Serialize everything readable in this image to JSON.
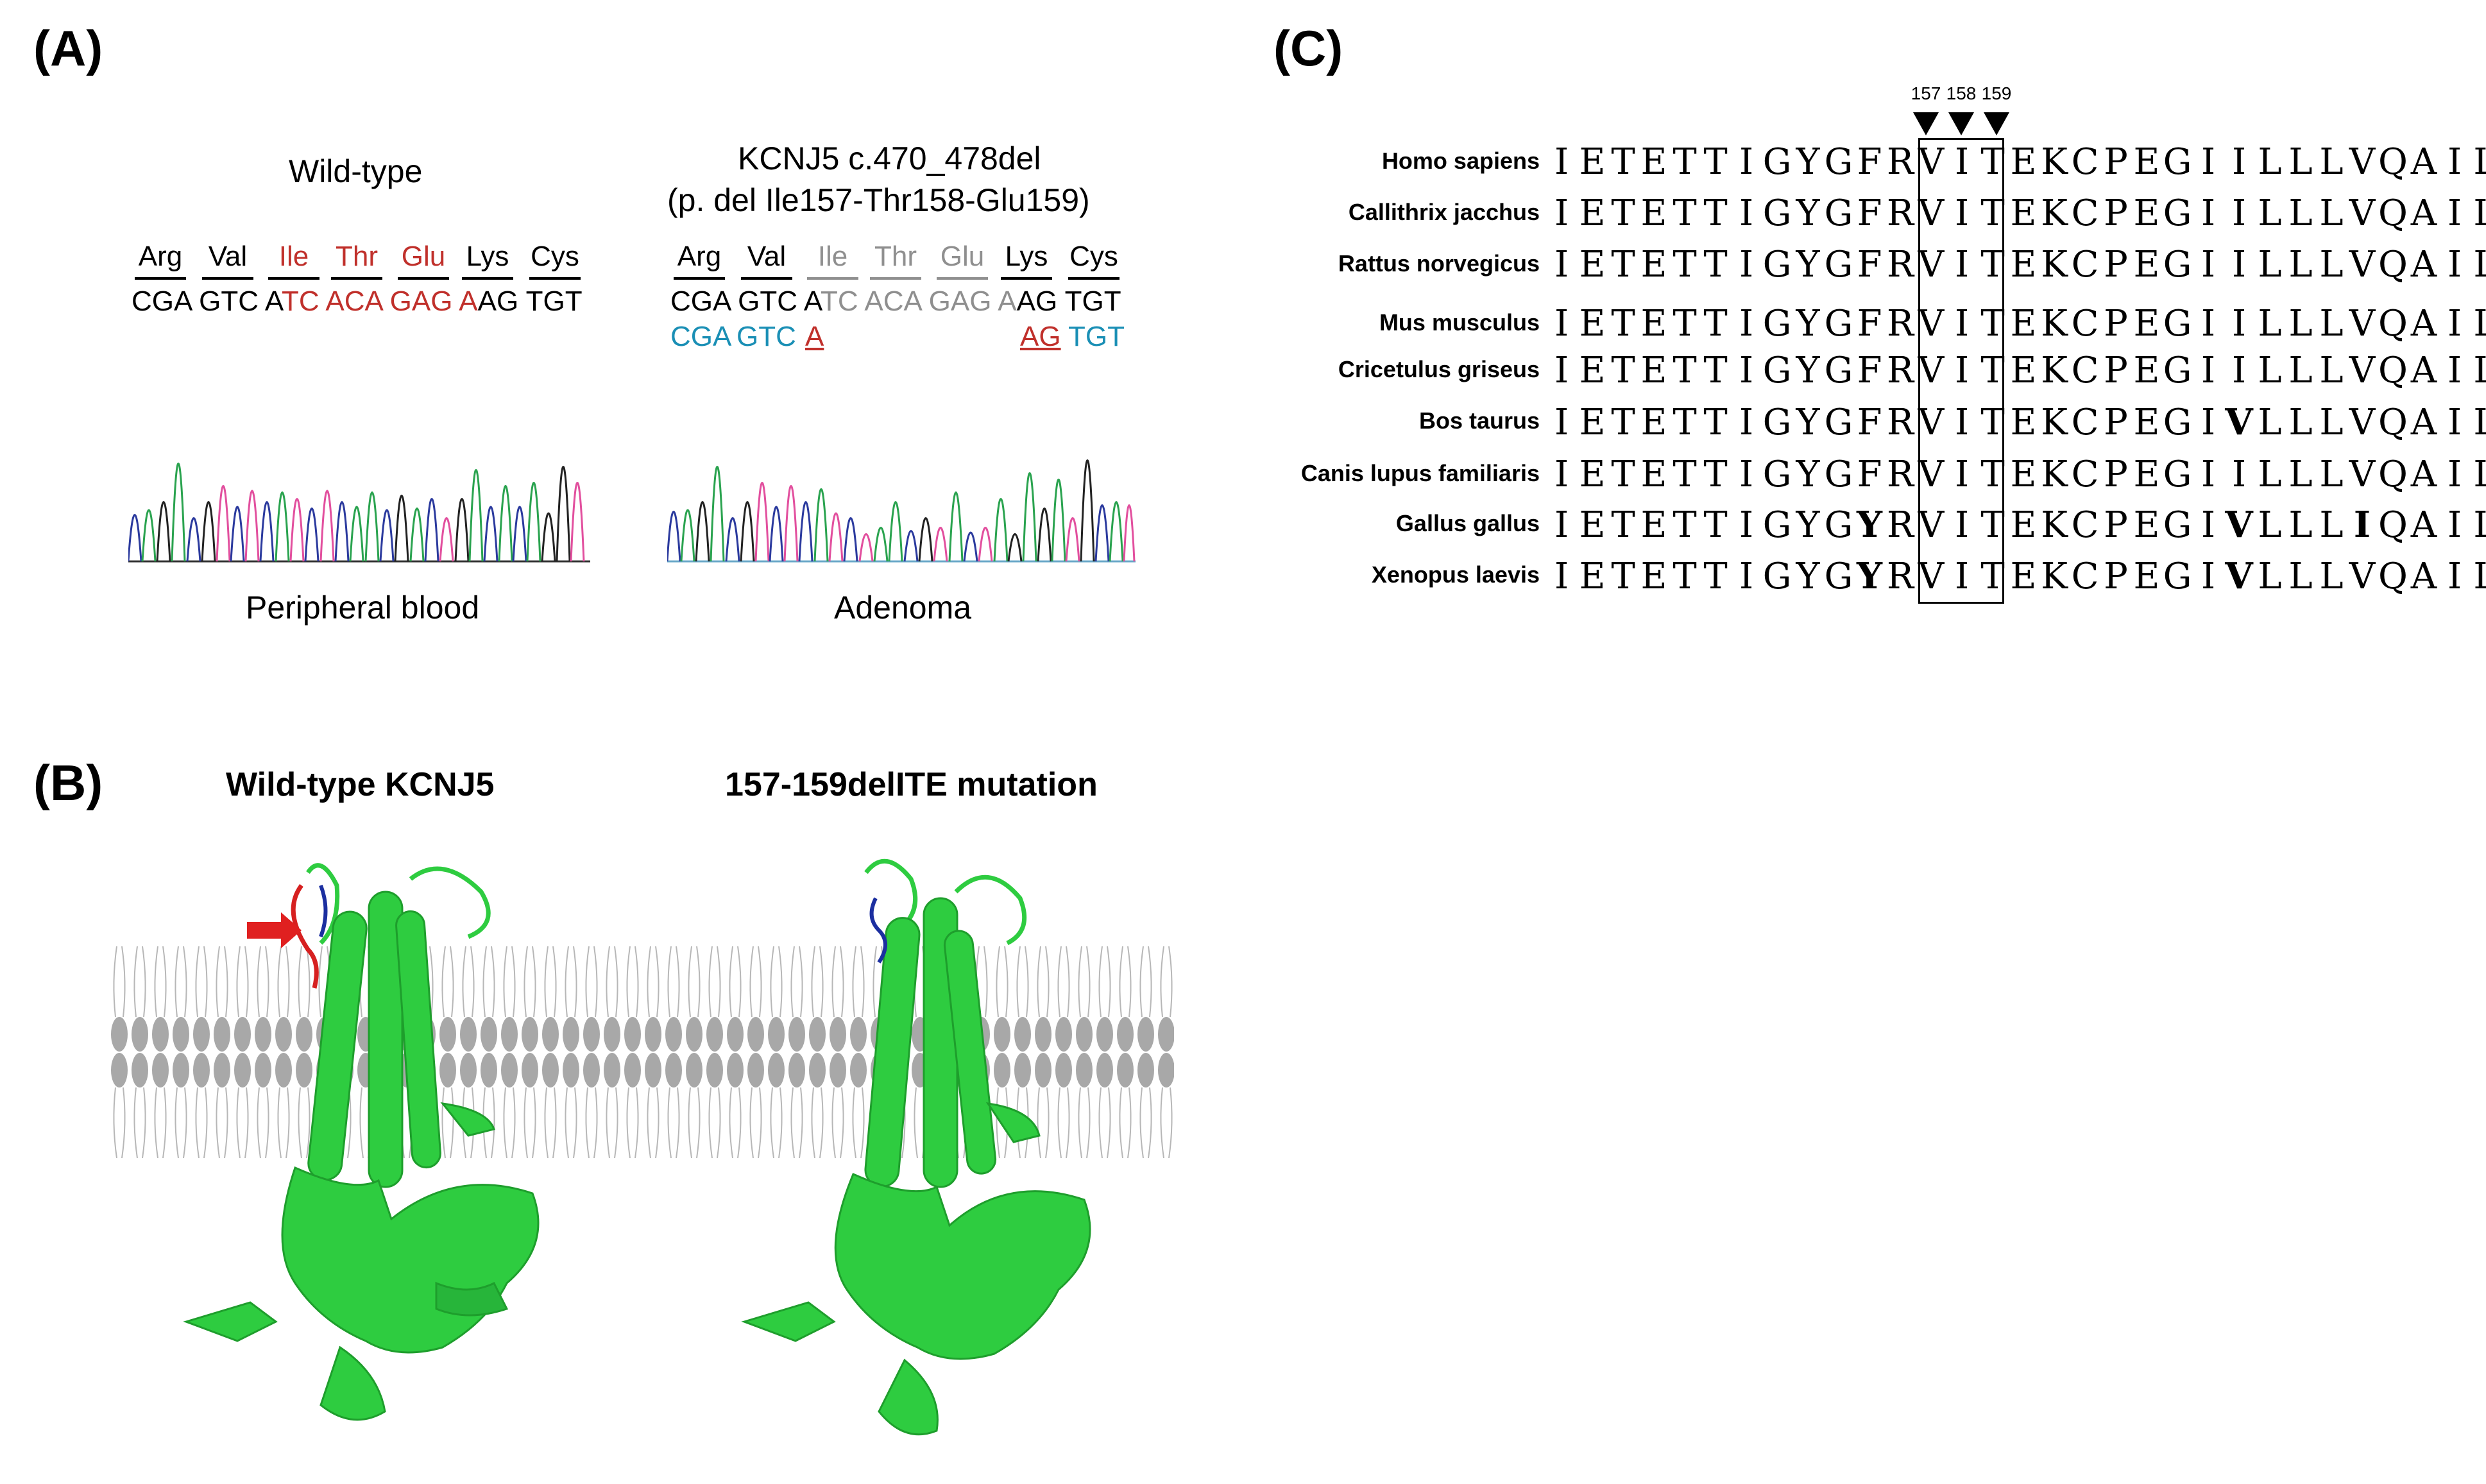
{
  "panelA": {
    "label": "(A)",
    "wildtype": {
      "title": "Wild-type",
      "amino_acids": [
        "Arg",
        "Val",
        "Ile",
        "Thr",
        "Glu",
        "Lys",
        "Cys"
      ],
      "aa_colors": [
        "#000000",
        "#000000",
        "#c0302b",
        "#c0302b",
        "#c0302b",
        "#000000",
        "#000000"
      ],
      "sequence": [
        "CGA",
        "GTC",
        "A",
        "TC",
        "ACA",
        "GAG",
        "A",
        "AG",
        "TGT"
      ],
      "caption": "Peripheral blood"
    },
    "mutant": {
      "title_line1": "KCNJ5 c.470_478del",
      "title_line2": "(p. del Ile157-Thr158-Glu159)",
      "amino_acids": [
        "Arg",
        "Val",
        "Ile",
        "Thr",
        "Glu",
        "Lys",
        "Cys"
      ],
      "aa_colors": [
        "#000000",
        "#000000",
        "#8f8f8f",
        "#8f8f8f",
        "#8f8f8f",
        "#000000",
        "#000000"
      ],
      "sequence": [
        "CGA",
        "GTC",
        "A",
        "TC",
        "ACA",
        "GAG",
        "A",
        "AG",
        "TGT"
      ],
      "mut_sequence": [
        "CGA",
        "GTC",
        "A",
        "AG",
        "TGT"
      ],
      "caption": "Adenoma"
    }
  },
  "panelB": {
    "label": "(B)",
    "left_title": "Wild-type KCNJ5",
    "right_title": "157-159delITE mutation"
  },
  "panelC": {
    "label": "(C)",
    "positions": [
      "157",
      "158",
      "159"
    ],
    "alignment": [
      {
        "species": "Homo sapiens",
        "seq": "IETETTIGYGFRVITEKCPEGIILLLVQAILG",
        "bold": []
      },
      {
        "species": "Callithrix jacchus",
        "seq": "IETETTIGYGFRVITEKCPEGIILLLVQAILG",
        "bold": []
      },
      {
        "species": "Rattus norvegicus",
        "seq": "IETETTIGYGFRVITEKCPEGIILLLVQAILG",
        "bold": []
      },
      {
        "species": "Mus musculus",
        "seq": "IETETTIGYGFRVITEKCPEGIILLLVQAILG",
        "bold": []
      },
      {
        "species": "Cricetulus griseus",
        "seq": "IETETTIGYGFRVITEKCPEGIILLLVQAILG",
        "bold": []
      },
      {
        "species": "Bos taurus",
        "seq": "IETETTIGYGFRVITEKCPEGIVLLLVQAILG",
        "bold": [
          22
        ]
      },
      {
        "species": "Canis lupus familiaris",
        "seq": "IETETTIGYGFRVITEKCPEGIILLLVQAILG",
        "bold": []
      },
      {
        "species": "Gallus gallus",
        "seq": "IETETTIGYGYRVITEKCPEGIVLLLIQAILG",
        "bold": [
          10,
          22,
          26
        ]
      },
      {
        "species": "Xenopus laevis",
        "seq": "IETETTIGYGYRVITEKCPEGIVLLLVQAILG",
        "bold": [
          10,
          22
        ]
      }
    ]
  }
}
